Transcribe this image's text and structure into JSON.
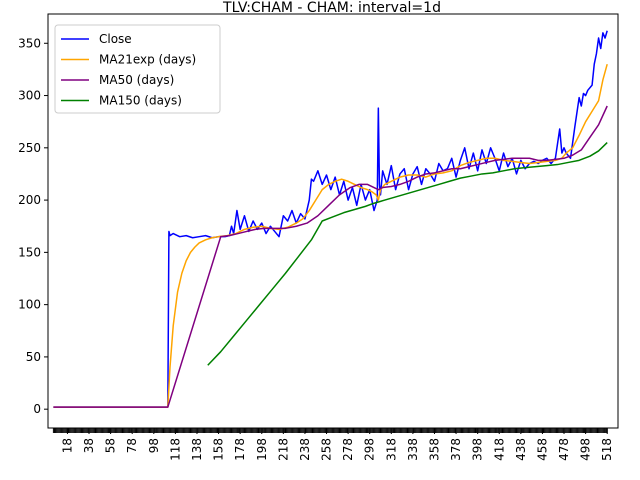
{
  "chart_data": {
    "type": "line",
    "title": "TLV:CHAM - CHAM: interval=1d",
    "xlabel": "",
    "ylabel": "",
    "xlim": [
      0,
      528
    ],
    "ylim": [
      -18,
      378
    ],
    "x_ticks": [
      18,
      38,
      58,
      78,
      98,
      118,
      138,
      158,
      178,
      198,
      218,
      238,
      258,
      278,
      298,
      318,
      338,
      358,
      378,
      398,
      418,
      438,
      458,
      478,
      498,
      518
    ],
    "y_ticks": [
      0,
      50,
      100,
      150,
      200,
      250,
      300,
      350
    ],
    "grid": false,
    "legend": "top-left",
    "series": [
      {
        "name": "Close",
        "color": "#0000ff",
        "x": [
          5,
          30,
          60,
          90,
          111,
          112,
          113,
          116,
          122,
          128,
          134,
          140,
          146,
          152,
          158,
          164,
          168,
          170,
          172,
          175,
          178,
          182,
          186,
          190,
          194,
          198,
          202,
          206,
          210,
          214,
          218,
          222,
          226,
          230,
          234,
          238,
          242,
          244,
          246,
          250,
          254,
          258,
          262,
          266,
          270,
          274,
          278,
          282,
          286,
          290,
          294,
          298,
          302,
          305,
          306,
          307,
          308,
          310,
          314,
          318,
          322,
          326,
          330,
          334,
          338,
          342,
          346,
          350,
          354,
          358,
          362,
          366,
          370,
          374,
          378,
          382,
          386,
          390,
          394,
          398,
          402,
          406,
          410,
          414,
          418,
          422,
          426,
          430,
          434,
          438,
          442,
          446,
          450,
          454,
          458,
          462,
          466,
          470,
          474,
          476,
          478,
          480,
          484,
          488,
          492,
          494,
          496,
          498,
          500,
          504,
          506,
          508,
          510,
          512,
          514,
          516,
          518
        ],
        "values": [
          2,
          2,
          2,
          2,
          2,
          170,
          166,
          168,
          165,
          166,
          164,
          165,
          166,
          164,
          165,
          165,
          166,
          175,
          168,
          190,
          172,
          185,
          170,
          180,
          172,
          178,
          168,
          175,
          170,
          165,
          185,
          180,
          190,
          178,
          187,
          182,
          200,
          220,
          218,
          228,
          215,
          224,
          210,
          222,
          205,
          218,
          200,
          212,
          195,
          215,
          200,
          210,
          190,
          200,
          288,
          215,
          205,
          228,
          215,
          233,
          210,
          225,
          230,
          210,
          225,
          232,
          215,
          230,
          225,
          218,
          235,
          228,
          230,
          240,
          222,
          238,
          250,
          230,
          245,
          228,
          248,
          235,
          250,
          240,
          228,
          245,
          232,
          240,
          225,
          238,
          230,
          235,
          237,
          235,
          238,
          240,
          235,
          240,
          268,
          245,
          250,
          245,
          240,
          270,
          298,
          290,
          302,
          300,
          305,
          310,
          330,
          340,
          355,
          345,
          360,
          355,
          362
        ]
      },
      {
        "name": "MA21exp (days)",
        "color": "#ffa500",
        "x": [
          5,
          60,
          111,
          113,
          116,
          120,
          124,
          128,
          132,
          136,
          140,
          146,
          152,
          158,
          166,
          174,
          182,
          190,
          198,
          206,
          214,
          222,
          230,
          236,
          242,
          248,
          254,
          260,
          266,
          272,
          278,
          284,
          290,
          296,
          300,
          304,
          306,
          308,
          312,
          318,
          326,
          334,
          342,
          350,
          358,
          366,
          374,
          382,
          390,
          398,
          406,
          414,
          422,
          430,
          438,
          446,
          454,
          462,
          470,
          476,
          480,
          486,
          492,
          498,
          504,
          510,
          514,
          518
        ],
        "values": [
          2,
          2,
          2,
          40,
          80,
          112,
          130,
          142,
          150,
          155,
          159,
          162,
          164,
          165,
          166,
          168,
          172,
          174,
          175,
          173,
          172,
          174,
          178,
          182,
          190,
          200,
          210,
          215,
          218,
          220,
          218,
          215,
          212,
          210,
          208,
          205,
          200,
          210,
          215,
          218,
          222,
          224,
          224,
          222,
          225,
          226,
          228,
          233,
          236,
          238,
          240,
          240,
          238,
          237,
          236,
          235,
          236,
          237,
          238,
          240,
          245,
          250,
          262,
          275,
          285,
          295,
          315,
          330
        ]
      },
      {
        "name": "MA50 (days)",
        "color": "#800080",
        "x": [
          5,
          60,
          111,
          160,
          168,
          176,
          184,
          192,
          200,
          210,
          220,
          230,
          240,
          250,
          260,
          270,
          280,
          288,
          296,
          302,
          306,
          310,
          318,
          326,
          334,
          342,
          350,
          358,
          366,
          374,
          382,
          390,
          398,
          406,
          414,
          422,
          430,
          438,
          446,
          454,
          462,
          470,
          478,
          486,
          494,
          502,
          510,
          518
        ],
        "values": [
          2,
          2,
          2,
          165,
          166,
          168,
          170,
          172,
          173,
          173,
          173,
          175,
          178,
          185,
          195,
          205,
          212,
          215,
          215,
          212,
          210,
          212,
          213,
          215,
          218,
          222,
          225,
          226,
          228,
          230,
          230,
          232,
          234,
          236,
          238,
          239,
          240,
          240,
          240,
          238,
          238,
          239,
          240,
          243,
          248,
          260,
          272,
          290
        ]
      },
      {
        "name": "MA150 (days)",
        "color": "#008000",
        "x": [
          148,
          160,
          172,
          184,
          196,
          208,
          220,
          232,
          244,
          254,
          264,
          274,
          284,
          294,
          302,
          312,
          322,
          332,
          342,
          352,
          362,
          372,
          382,
          392,
          402,
          412,
          422,
          432,
          442,
          452,
          462,
          472,
          482,
          492,
          502,
          510,
          518
        ],
        "values": [
          42,
          55,
          70,
          85,
          100,
          115,
          130,
          146,
          162,
          180,
          184,
          188,
          191,
          194,
          197,
          200,
          203,
          206,
          209,
          212,
          215,
          218,
          221,
          223,
          225,
          226,
          228,
          230,
          231,
          232,
          233,
          234,
          236,
          238,
          242,
          247,
          255
        ]
      }
    ]
  }
}
